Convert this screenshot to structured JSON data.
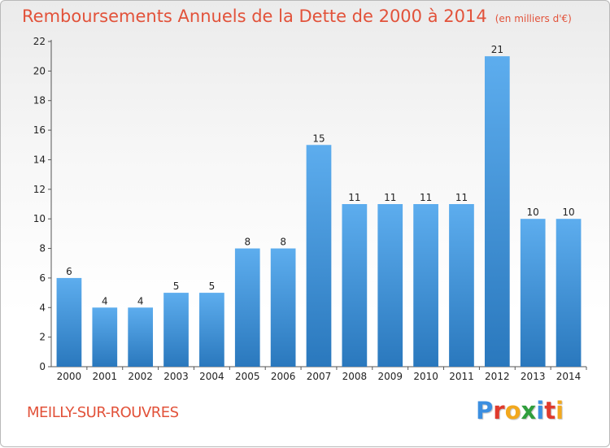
{
  "title": "Remboursements Annuels de la Dette de 2000 à 2014",
  "unit_note": "(en milliers d'€)",
  "commune": "MEILLY-SUR-ROUVRES",
  "logo": {
    "text": "Proxiti",
    "letters": [
      {
        "ch": "P",
        "color": "#3b8ee0"
      },
      {
        "ch": "r",
        "color": "#e03a2c"
      },
      {
        "ch": "o",
        "color": "#f2a81d"
      },
      {
        "ch": "x",
        "color": "#2f9e3c"
      },
      {
        "ch": "i",
        "color": "#3b8ee0"
      },
      {
        "ch": "t",
        "color": "#e03a2c"
      },
      {
        "ch": "i",
        "color": "#f2a81d"
      }
    ]
  },
  "colors": {
    "title": "#e2523a",
    "bar_light": "#5dadee",
    "bar_dark": "#2a78bd",
    "axis": "#555555",
    "grid": "#d0d0d0"
  },
  "chart_data": {
    "type": "bar",
    "title": "Remboursements Annuels de la Dette de 2000 à 2014",
    "xlabel": "",
    "ylabel": "",
    "categories": [
      "2000",
      "2001",
      "2002",
      "2003",
      "2004",
      "2005",
      "2006",
      "2007",
      "2008",
      "2009",
      "2010",
      "2011",
      "2012",
      "2013",
      "2014"
    ],
    "values": [
      6,
      4,
      4,
      5,
      5,
      8,
      8,
      15,
      11,
      11,
      11,
      11,
      21,
      10,
      10
    ],
    "ylim": [
      0,
      22
    ],
    "yticks": [
      0,
      2,
      4,
      6,
      8,
      10,
      12,
      14,
      16,
      18,
      20,
      22
    ],
    "grid": false,
    "legend": "none"
  }
}
